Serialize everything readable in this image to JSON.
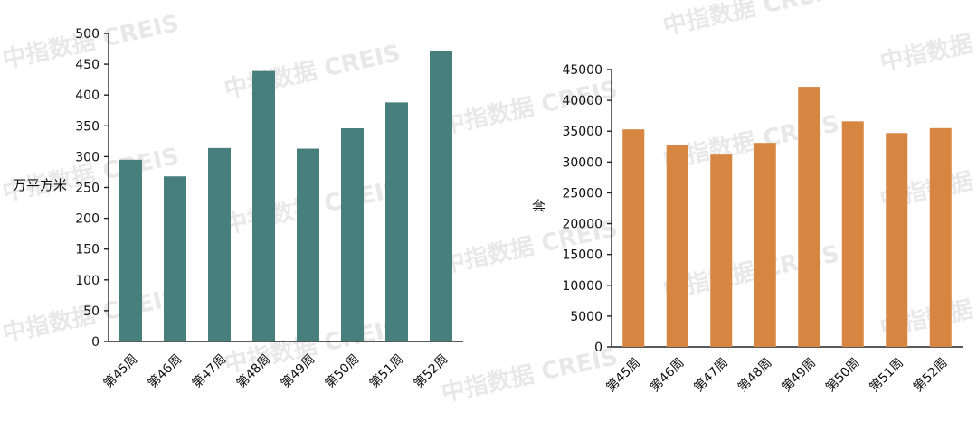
{
  "chart_data": [
    {
      "type": "bar",
      "ylabel": "万平方米",
      "categories": [
        "第45周",
        "第46周",
        "第47周",
        "第48周",
        "第49周",
        "第50周",
        "第51周",
        "第52周"
      ],
      "values": [
        295,
        268,
        314,
        439,
        313,
        346,
        388,
        471
      ],
      "ylim": [
        0,
        500
      ],
      "yticks": [
        0,
        50,
        100,
        150,
        200,
        250,
        300,
        350,
        400,
        450,
        500
      ],
      "grid": false,
      "color": "#477f7c"
    },
    {
      "type": "bar",
      "ylabel": "套",
      "categories": [
        "第45周",
        "第46周",
        "第47周",
        "第48周",
        "第49周",
        "第50周",
        "第51周",
        "第52周"
      ],
      "values": [
        35300,
        32700,
        31200,
        33100,
        42200,
        36600,
        34700,
        35500
      ],
      "ylim": [
        0,
        45000
      ],
      "yticks": [
        0,
        5000,
        10000,
        15000,
        20000,
        25000,
        30000,
        35000,
        40000,
        45000
      ],
      "grid": false,
      "color": "#d78641"
    }
  ],
  "watermark": "中指数据 CREIS"
}
